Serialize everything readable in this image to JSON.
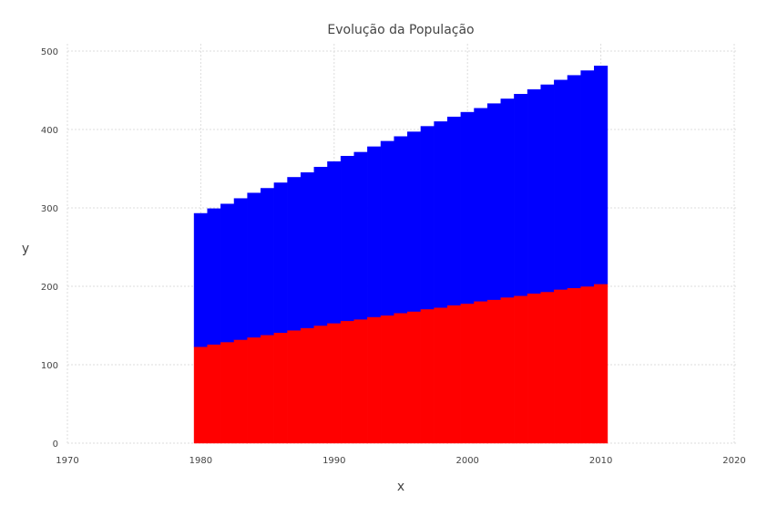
{
  "chart_data": {
    "type": "bar",
    "stacked": true,
    "title": "Evolução da População",
    "xlabel": "x",
    "ylabel": "y",
    "xlim": [
      1970,
      2020
    ],
    "ylim": [
      0,
      500
    ],
    "grid": true,
    "x_ticks": [
      "1970",
      "1980",
      "1990",
      "2000",
      "2010",
      "2020"
    ],
    "y_ticks": [
      "0",
      "100",
      "200",
      "300",
      "400",
      "500"
    ],
    "x": [
      1980,
      1981,
      1982,
      1983,
      1984,
      1985,
      1986,
      1987,
      1988,
      1989,
      1990,
      1991,
      1992,
      1993,
      1994,
      1995,
      1996,
      1997,
      1998,
      1999,
      2000,
      2001,
      2002,
      2003,
      2004,
      2005,
      2006,
      2007,
      2008,
      2009,
      2010
    ],
    "series": [
      {
        "color": "#ff0000",
        "values": [
          123,
          126,
          129,
          132,
          135,
          138,
          141,
          144,
          147,
          150,
          153,
          156,
          158,
          161,
          163,
          166,
          168,
          171,
          173,
          176,
          178,
          181,
          183,
          186,
          188,
          191,
          193,
          196,
          198,
          200,
          203
        ]
      },
      {
        "color": "#0000ff",
        "values": [
          170,
          173,
          176,
          180,
          184,
          187,
          191,
          195,
          198,
          202,
          206,
          210,
          213,
          217,
          222,
          225,
          229,
          233,
          237,
          240,
          244,
          246,
          250,
          253,
          257,
          260,
          264,
          267,
          271,
          275,
          278
        ]
      }
    ]
  }
}
